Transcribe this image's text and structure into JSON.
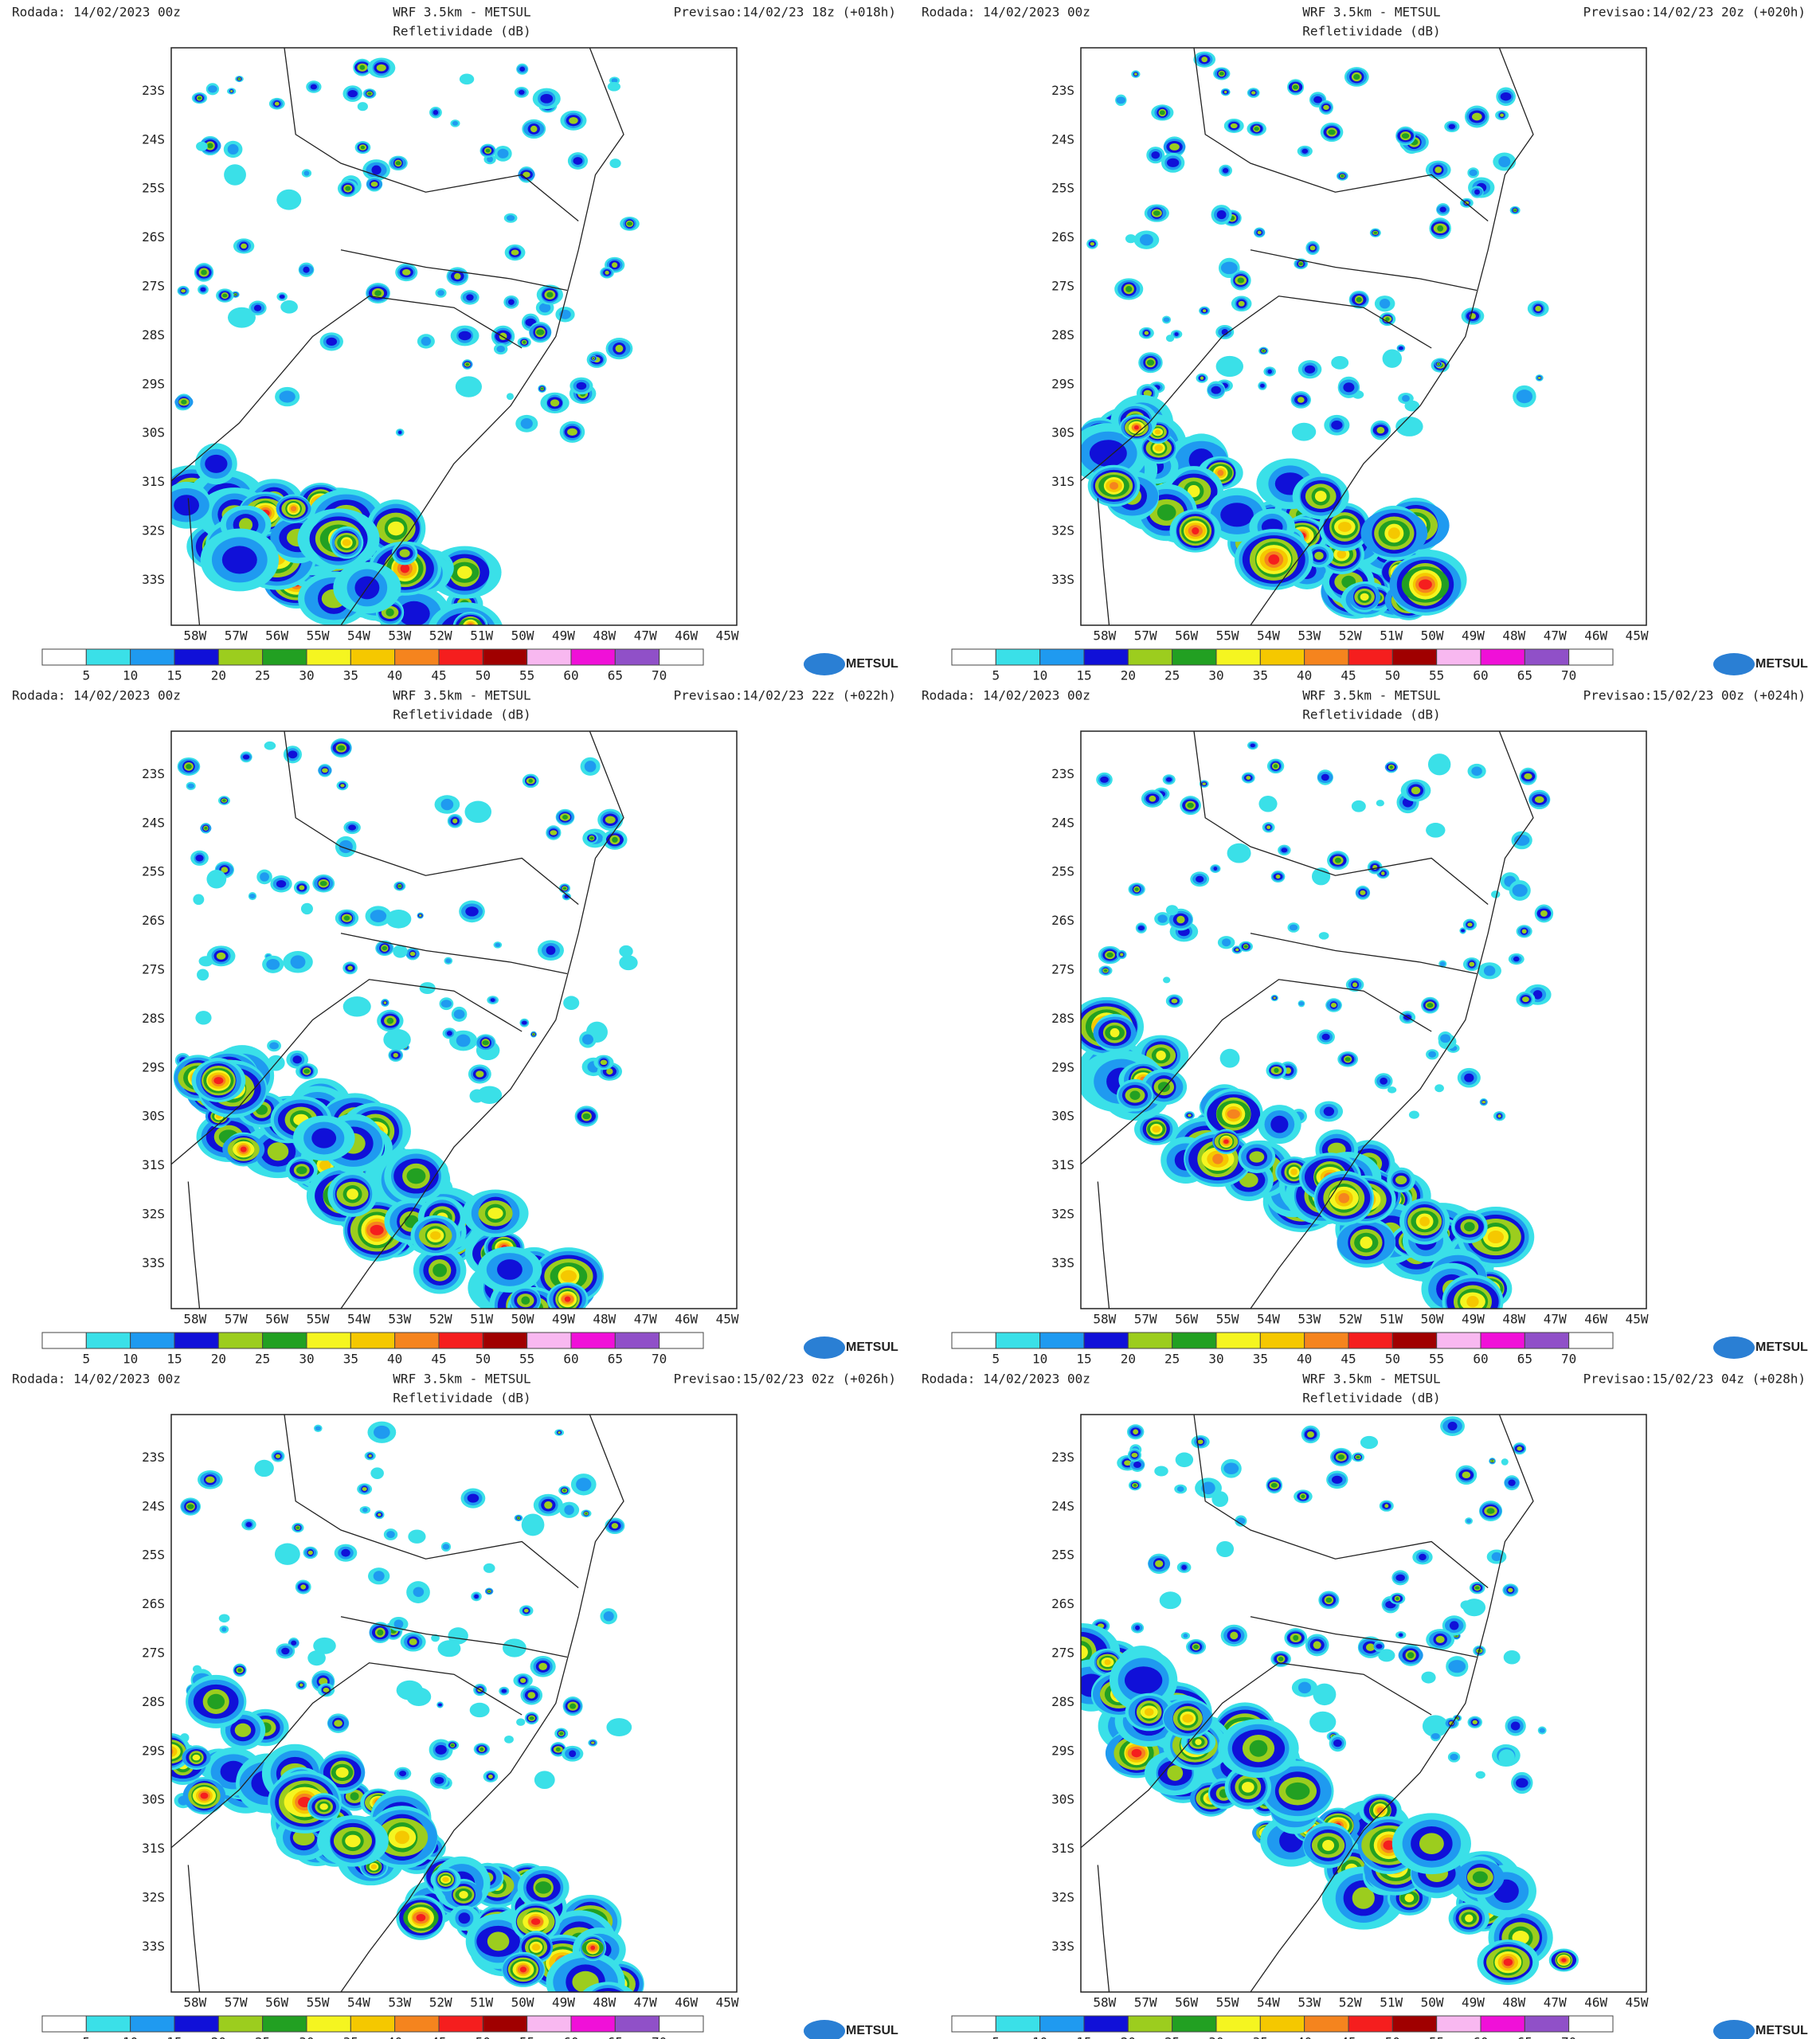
{
  "panels": [
    {
      "run": "Rodada: 14/02/2023 00z",
      "title": "WRF 3.5km - METSUL",
      "subtitle": "Refletividade (dB)",
      "forecast": "Previsao:14/02/23 18z (+018h)"
    },
    {
      "run": "Rodada: 14/02/2023 00z",
      "title": "WRF 3.5km - METSUL",
      "subtitle": "Refletividade (dB)",
      "forecast": "Previsao:14/02/23 20z (+020h)"
    },
    {
      "run": "Rodada: 14/02/2023 00z",
      "title": "WRF 3.5km - METSUL",
      "subtitle": "Refletividade (dB)",
      "forecast": "Previsao:14/02/23 22z (+022h)"
    },
    {
      "run": "Rodada: 14/02/2023 00z",
      "title": "WRF 3.5km - METSUL",
      "subtitle": "Refletividade (dB)",
      "forecast": "Previsao:15/02/23 00z (+024h)"
    },
    {
      "run": "Rodada: 14/02/2023 00z",
      "title": "WRF 3.5km - METSUL",
      "subtitle": "Refletividade (dB)",
      "forecast": "Previsao:15/02/23 02z (+026h)"
    },
    {
      "run": "Rodada: 14/02/2023 00z",
      "title": "WRF 3.5km - METSUL",
      "subtitle": "Refletividade (dB)",
      "forecast": "Previsao:15/02/23 04z (+028h)"
    }
  ],
  "lat_labels": [
    "23S",
    "24S",
    "25S",
    "26S",
    "27S",
    "28S",
    "29S",
    "30S",
    "31S",
    "32S",
    "33S"
  ],
  "lon_labels": [
    "58W",
    "57W",
    "56W",
    "55W",
    "54W",
    "53W",
    "52W",
    "51W",
    "50W",
    "49W",
    "48W",
    "47W",
    "46W",
    "45W"
  ],
  "colorbar": {
    "ticks": [
      5,
      10,
      15,
      20,
      25,
      30,
      35,
      40,
      45,
      50,
      55,
      60,
      65,
      70
    ],
    "colors": [
      "#ffffff",
      "#3ae0e8",
      "#1f9af0",
      "#1010d8",
      "#9ccd1e",
      "#22a022",
      "#f5f520",
      "#f5c800",
      "#f5841e",
      "#f51e1e",
      "#a00000",
      "#f8b8f0",
      "#f010d8",
      "#9050c8",
      "#ffffff"
    ]
  },
  "logo": "METSUL"
}
